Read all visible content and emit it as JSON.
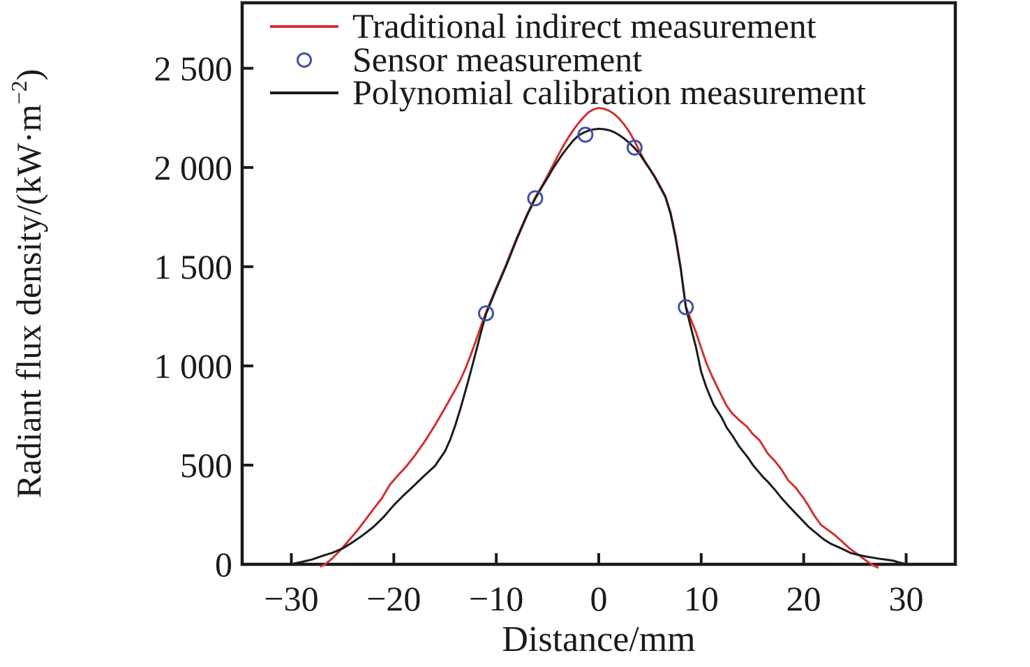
{
  "figure": {
    "background": "#ffffff",
    "text_color": "#1a1a1a",
    "frame_color": "#1a1a1a"
  },
  "chart_data": {
    "type": "line",
    "title": "",
    "xlabel": "Distance/mm",
    "ylabel": "Radiant flux density/(kW·m⁻²)",
    "ylabel_parts": {
      "main": "Radiant flux density/(kW·m",
      "sup": "−2",
      "close": ")"
    },
    "xlim": [
      -34.8,
      34.8
    ],
    "ylim": [
      0,
      2830
    ],
    "grid": false,
    "legend_position": "top-left-inside",
    "x_ticks": [
      {
        "v": -30,
        "label": "−30"
      },
      {
        "v": -20,
        "label": "−20"
      },
      {
        "v": -10,
        "label": "−10"
      },
      {
        "v": 0,
        "label": "0"
      },
      {
        "v": 10,
        "label": "10"
      },
      {
        "v": 20,
        "label": "20"
      },
      {
        "v": 30,
        "label": "30"
      }
    ],
    "y_ticks": [
      {
        "v": 0,
        "label": "0"
      },
      {
        "v": 500,
        "label": "500"
      },
      {
        "v": 1000,
        "label": "1 000"
      },
      {
        "v": 1500,
        "label": "1 500"
      },
      {
        "v": 2000,
        "label": "2 000"
      },
      {
        "v": 2500,
        "label": "2 500"
      }
    ],
    "series": [
      {
        "name": "Traditional indirect measurement",
        "kind": "line",
        "color": "#d23030",
        "points": [
          [
            -27.2,
            -12
          ],
          [
            -26.7,
            0
          ],
          [
            -26,
            30
          ],
          [
            -25.2,
            72
          ],
          [
            -24.4,
            120
          ],
          [
            -23.6,
            168
          ],
          [
            -22.8,
            222
          ],
          [
            -22,
            278
          ],
          [
            -21.2,
            330
          ],
          [
            -20.4,
            400
          ],
          [
            -19.6,
            448
          ],
          [
            -18.8,
            492
          ],
          [
            -18,
            545
          ],
          [
            -17,
            618
          ],
          [
            -16,
            700
          ],
          [
            -15,
            788
          ],
          [
            -14,
            880
          ],
          [
            -13.5,
            930
          ],
          [
            -13,
            988
          ],
          [
            -12.5,
            1055
          ],
          [
            -12,
            1125
          ],
          [
            -11.5,
            1200
          ],
          [
            -11,
            1270
          ],
          [
            -10,
            1395
          ],
          [
            -9,
            1515
          ],
          [
            -8,
            1645
          ],
          [
            -7,
            1763
          ],
          [
            -6.2,
            1850
          ],
          [
            -5.5,
            1910
          ],
          [
            -5,
            1958
          ],
          [
            -4.5,
            2008
          ],
          [
            -4,
            2058
          ],
          [
            -3.5,
            2105
          ],
          [
            -3,
            2148
          ],
          [
            -2.5,
            2188
          ],
          [
            -2,
            2222
          ],
          [
            -1.5,
            2252
          ],
          [
            -1,
            2278
          ],
          [
            -0.5,
            2293
          ],
          [
            0,
            2300
          ],
          [
            0.5,
            2296
          ],
          [
            1,
            2286
          ],
          [
            1.5,
            2270
          ],
          [
            2,
            2246
          ],
          [
            2.5,
            2215
          ],
          [
            3,
            2178
          ],
          [
            3.5,
            2132
          ],
          [
            4,
            2080
          ],
          [
            4.5,
            2032
          ],
          [
            5,
            1993
          ],
          [
            5.5,
            1952
          ],
          [
            6,
            1905
          ],
          [
            6.5,
            1857
          ],
          [
            7,
            1775
          ],
          [
            7.5,
            1655
          ],
          [
            8,
            1495
          ],
          [
            8.5,
            1300
          ],
          [
            9,
            1232
          ],
          [
            9.5,
            1168
          ],
          [
            10,
            1090
          ],
          [
            10.5,
            1015
          ],
          [
            11,
            955
          ],
          [
            11.5,
            900
          ],
          [
            12,
            848
          ],
          [
            12.5,
            798
          ],
          [
            13,
            762
          ],
          [
            13.7,
            727
          ],
          [
            14.5,
            692
          ],
          [
            15,
            658
          ],
          [
            15.7,
            625
          ],
          [
            16.5,
            558
          ],
          [
            17.2,
            520
          ],
          [
            17.8,
            480
          ],
          [
            18.5,
            422
          ],
          [
            19.2,
            388
          ],
          [
            20,
            332
          ],
          [
            20.5,
            293
          ],
          [
            21,
            248
          ],
          [
            21.7,
            198
          ],
          [
            22.4,
            172
          ],
          [
            23.1,
            145
          ],
          [
            23.8,
            112
          ],
          [
            24.6,
            75
          ],
          [
            25.3,
            50
          ],
          [
            26,
            22
          ],
          [
            26.7,
            -3
          ],
          [
            27.3,
            -18
          ]
        ]
      },
      {
        "name": "Sensor measurement",
        "kind": "scatter",
        "color": "#3f51a5",
        "marker": "open-circle",
        "points": [
          [
            -11,
            1265
          ],
          [
            -6.2,
            1845
          ],
          [
            -1.3,
            2165
          ],
          [
            3.5,
            2100
          ],
          [
            8.5,
            1296
          ]
        ]
      },
      {
        "name": "Polynomial calibration measurement",
        "kind": "line",
        "color": "#1c1c1c",
        "points": [
          [
            -29.9,
            2
          ],
          [
            -29,
            12
          ],
          [
            -28,
            24
          ],
          [
            -27,
            42
          ],
          [
            -26,
            58
          ],
          [
            -25,
            80
          ],
          [
            -24,
            112
          ],
          [
            -23,
            148
          ],
          [
            -22,
            188
          ],
          [
            -21,
            238
          ],
          [
            -20,
            298
          ],
          [
            -19,
            350
          ],
          [
            -18,
            398
          ],
          [
            -17,
            448
          ],
          [
            -16,
            495
          ],
          [
            -15,
            570
          ],
          [
            -14.5,
            628
          ],
          [
            -14,
            700
          ],
          [
            -13.5,
            785
          ],
          [
            -13,
            875
          ],
          [
            -12.5,
            970
          ],
          [
            -12,
            1068
          ],
          [
            -11.5,
            1168
          ],
          [
            -11,
            1262
          ],
          [
            -10,
            1388
          ],
          [
            -9,
            1508
          ],
          [
            -8,
            1638
          ],
          [
            -7,
            1758
          ],
          [
            -6.2,
            1843
          ],
          [
            -5.5,
            1905
          ],
          [
            -5,
            1948
          ],
          [
            -4.5,
            1992
          ],
          [
            -4,
            2032
          ],
          [
            -3.5,
            2070
          ],
          [
            -3,
            2103
          ],
          [
            -2.5,
            2135
          ],
          [
            -2,
            2160
          ],
          [
            -1.5,
            2175
          ],
          [
            -1,
            2186
          ],
          [
            -0.5,
            2192
          ],
          [
            0,
            2195
          ],
          [
            0.5,
            2193
          ],
          [
            1,
            2188
          ],
          [
            1.5,
            2178
          ],
          [
            2,
            2163
          ],
          [
            2.5,
            2145
          ],
          [
            3,
            2123
          ],
          [
            3.5,
            2098
          ],
          [
            4,
            2068
          ],
          [
            4.5,
            2028
          ],
          [
            5,
            1990
          ],
          [
            5.5,
            1948
          ],
          [
            6,
            1900
          ],
          [
            6.5,
            1852
          ],
          [
            7,
            1768
          ],
          [
            7.5,
            1645
          ],
          [
            8,
            1488
          ],
          [
            8.5,
            1296
          ],
          [
            9,
            1192
          ],
          [
            9.5,
            1092
          ],
          [
            10,
            970
          ],
          [
            10.5,
            892
          ],
          [
            11.2,
            805
          ],
          [
            12,
            740
          ],
          [
            12.5,
            688
          ],
          [
            13,
            652
          ],
          [
            13.7,
            594
          ],
          [
            14.5,
            542
          ],
          [
            15.1,
            497
          ],
          [
            16,
            442
          ],
          [
            16.5,
            416
          ],
          [
            17.2,
            375
          ],
          [
            17.8,
            336
          ],
          [
            18.5,
            296
          ],
          [
            19.2,
            258
          ],
          [
            20,
            215
          ],
          [
            20.5,
            188
          ],
          [
            21.2,
            158
          ],
          [
            21.9,
            128
          ],
          [
            22.6,
            105
          ],
          [
            23.3,
            89
          ],
          [
            24,
            72
          ],
          [
            24.6,
            57
          ],
          [
            25.3,
            48
          ],
          [
            26,
            40
          ],
          [
            26.7,
            34
          ],
          [
            27.3,
            29
          ],
          [
            28,
            24
          ],
          [
            28.7,
            19
          ],
          [
            29.3,
            10
          ],
          [
            29.8,
            4
          ]
        ]
      }
    ]
  }
}
